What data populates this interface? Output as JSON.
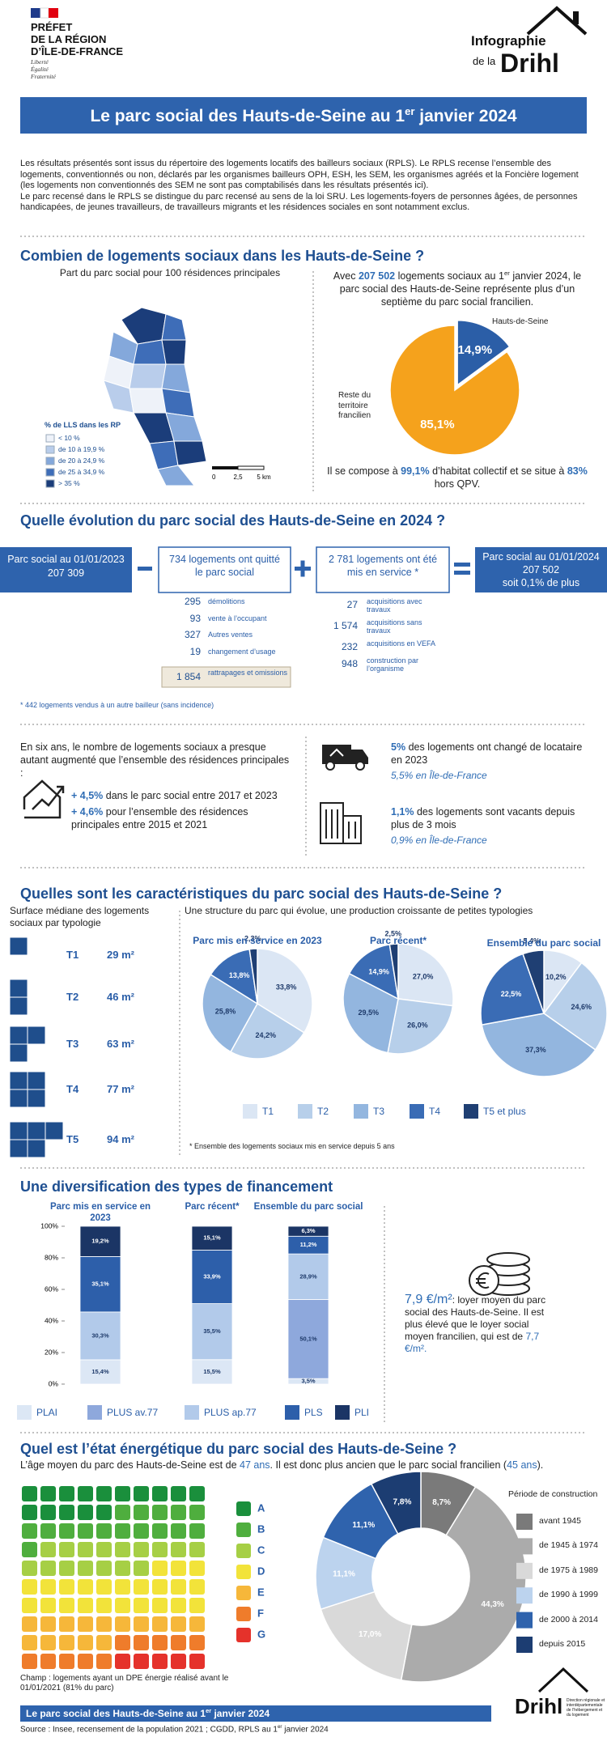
{
  "header": {
    "logo": [
      "PRÉFET",
      "DE LA RÉGION",
      "D’ÎLE-DE-FRANCE"
    ],
    "motto": [
      "Liberté",
      "Égalité",
      "Fraternité"
    ],
    "brand": [
      "Infographie",
      "de la",
      "Drihl"
    ]
  },
  "title": [
    "Le parc social des Hauts-de-Seine au 1",
    "er",
    "janvier 2024"
  ],
  "intro": [
    "Les résultats présentés sont issus du répertoire des logements locatifs des bailleurs sociaux (RPLS). Le RPLS recense l’ensemble des logements, conventionnés ou non, déclarés par les organismes bailleurs OPH, ESH, les SEM, les organismes agréés et la Foncière logement (les logements non conventionnés des SEM ne sont pas comptabilisés dans les résultats présentés ici).",
    "Le parc recensé dans le RPLS se distingue du parc recensé au sens de la loi SRU. Les logements-foyers de personnes âgées, de personnes handicapées, de jeunes travailleurs, de travailleurs migrants et les résidences sociales en sont notamment exclus."
  ],
  "s1": {
    "heading": "Combien de logements sociaux dans les Hauts-de-Seine ?",
    "map": {
      "title": "Part du parc social pour 100 résidences principales",
      "legend_title": "% de LLS dans les RP",
      "legend": [
        {
          "label": "< 10 %",
          "color": "#eef2f9"
        },
        {
          "label": "de 10 à 19,9 %",
          "color": "#b9cdeb"
        },
        {
          "label": "de 20 à 24,9 %",
          "color": "#84a8db"
        },
        {
          "label": "de 25 à 34,9 %",
          "color": "#3e6db8"
        },
        {
          "label": "> 35 %",
          "color": "#1b3d7a"
        }
      ],
      "scale": [
        "0",
        "2,5",
        "5 km"
      ]
    },
    "text": [
      "Avec",
      "207 502",
      "logements sociaux au 1",
      "er",
      "janvier 2024, le parc social des Hauts-de-Seine représente plus d’un septième du parc social francilien."
    ],
    "pie": {
      "type": "pie",
      "categories": [
        "Hauts-de-Seine",
        "Reste du territoire francilien"
      ],
      "values": [
        14.9,
        85.1
      ],
      "value_labels": [
        "14,9%",
        "85,1%"
      ],
      "colors": [
        "#2b5ea7",
        "#f5a21c"
      ]
    },
    "bottom": [
      "Il se compose à",
      "99,1%",
      "d’habitat collectif et se situe à",
      "83%",
      "hors QPV."
    ]
  },
  "s2": {
    "heading": "Quelle évolution du parc social des Hauts-de-Seine en 2024 ?",
    "start": {
      "label": "Parc social au 01/01/2023",
      "value": "207 309"
    },
    "out": {
      "title": "734 logements ont quitté le parc social",
      "items": [
        [
          "295",
          "démolitions"
        ],
        [
          "93",
          "vente à l’occupant"
        ],
        [
          "327",
          "Autres ventes"
        ],
        [
          "19",
          "changement d’usage"
        ]
      ],
      "extra": [
        "1 854",
        "rattrapages et omissions"
      ]
    },
    "in": {
      "title": "2 781 logements ont été mis en service *",
      "items": [
        [
          "27",
          "acquisitions avec travaux"
        ],
        [
          "1 574",
          "acquisitions sans travaux"
        ],
        [
          "232",
          "acquisitions en VEFA"
        ],
        [
          "948",
          "construction par l’organisme"
        ]
      ]
    },
    "end": {
      "label": "Parc social au 01/01/2024",
      "value": "207 502",
      "note": "soit 0,1% de plus"
    },
    "footnote": "* 442 logements vendus à un autre bailleur (sans incidence)"
  },
  "s2b": {
    "left": {
      "text": "En six ans, le nombre de logements sociaux a presque autant augmenté que l’ensemble des résidences principales :",
      "items": [
        [
          "+ 4,5%",
          "dans le parc social entre 2017 et 2023"
        ],
        [
          "+ 4,6%",
          "pour l’ensemble des résidences principales entre 2015 et 2021"
        ]
      ]
    },
    "right": [
      {
        "value": "5%",
        "text": "des logements ont changé de locataire en 2023",
        "idf": "5,5% en Île-de-France"
      },
      {
        "value": "1,1%",
        "text": "des logements sont vacants depuis plus de 3 mois",
        "idf": "0,9% en Île-de-France"
      }
    ]
  },
  "s3": {
    "heading": "Quelles sont les caractéristiques du parc social des Hauts-de-Seine ?",
    "left_title": "Surface médiane des logements sociaux par typologie",
    "surfaces": [
      [
        "T1",
        "29 m²"
      ],
      [
        "T2",
        "46 m²"
      ],
      [
        "T3",
        "63 m²"
      ],
      [
        "T4",
        "77 m²"
      ],
      [
        "T5",
        "94 m²"
      ]
    ],
    "right_title": "Une structure du parc qui évolue, une production croissante de petites typologies",
    "pies": {
      "type": "pie",
      "categories": [
        "T1",
        "T2",
        "T3",
        "T4",
        "T5 et plus"
      ],
      "colors": [
        "#dbe6f4",
        "#b7cfea",
        "#93b6df",
        "#3a6cb5",
        "#1f3f73"
      ],
      "series": [
        {
          "name": "Parc mis en service en 2023",
          "values": [
            33.8,
            24.2,
            25.8,
            13.8,
            2.3
          ],
          "value_labels": [
            "33,8%",
            "24,2%",
            "25,8%",
            "13,8%",
            "2,3%"
          ]
        },
        {
          "name": "Parc récent*",
          "values": [
            27.0,
            26.0,
            29.5,
            14.9,
            2.5
          ],
          "value_labels": [
            "27,0%",
            "26,0%",
            "29,5%",
            "14,9%",
            "2,5%"
          ]
        },
        {
          "name": "Ensemble du parc social",
          "values": [
            10.2,
            24.6,
            37.3,
            22.5,
            5.4
          ],
          "value_labels": [
            "10,2%",
            "24,6%",
            "37,3%",
            "22,5%",
            "5,4%"
          ]
        }
      ]
    },
    "note": "* Ensemble des logements sociaux mis en service depuis 5 ans"
  },
  "s4": {
    "heading": "Une diversification des types de financement",
    "bars": {
      "type": "bar",
      "stacked": true,
      "categories": [
        "Parc mis en service en 2023",
        "Parc récent*",
        "Ensemble du parc social"
      ],
      "series": [
        {
          "name": "PLAI",
          "color": "#dce7f5",
          "values": [
            15.4,
            15.5,
            3.5
          ],
          "value_labels": [
            "15,4%",
            "15,5%",
            "3,5%"
          ]
        },
        {
          "name": "PLUS av.77",
          "color": "#8ea8dc",
          "values": [
            null,
            null,
            50.1
          ],
          "value_labels": [
            null,
            null,
            "50,1%"
          ]
        },
        {
          "name": "PLUS ap.77",
          "color": "#b2caea",
          "values": [
            30.3,
            35.5,
            28.9
          ],
          "value_labels": [
            "30,3%",
            "35,5%",
            "28,9%"
          ]
        },
        {
          "name": "PLS",
          "color": "#2d5faa",
          "values": [
            35.1,
            33.9,
            11.2
          ],
          "value_labels": [
            "35,1%",
            "33,9%",
            "11,2%"
          ]
        },
        {
          "name": "PLI",
          "color": "#1b3565",
          "values": [
            19.2,
            15.1,
            6.3
          ],
          "value_labels": [
            "19,2%",
            "15,1%",
            "6,3%"
          ]
        }
      ],
      "ylim": [
        0,
        100
      ],
      "yticks": [
        {
          "value": 0,
          "label": "0%"
        },
        {
          "value": 20,
          "label": "20%"
        },
        {
          "value": 40,
          "label": "40%"
        },
        {
          "value": 60,
          "label": "60%"
        },
        {
          "value": 80,
          "label": "80%"
        },
        {
          "value": 100,
          "label": "100%"
        }
      ]
    },
    "rent": [
      "7,9 €/m²",
      ": loyer moyen du parc social des Hauts-de-Seine. Il est plus élevé que le loyer social moyen francilien, qui est de",
      "7,7 €/m²."
    ]
  },
  "s5": {
    "heading": "Quel est l’état énergétique du parc social des Hauts-de-Seine ?",
    "subtitle": [
      "L’âge moyen du parc des Hauts-de-Seine est de",
      "47 ans",
      ". Il est donc plus ancien que le parc social francilien (",
      "45 ans",
      ")."
    ],
    "waffle": {
      "type": "waffle",
      "categories": [
        "A",
        "B",
        "C",
        "D",
        "E",
        "F",
        "G"
      ],
      "colors": [
        "#1a8f3c",
        "#4fae3e",
        "#a6cf45",
        "#f2e33a",
        "#f6b73a",
        "#ef7c2b",
        "#e5322b"
      ],
      "values": [
        15,
        16,
        16,
        23,
        15,
        10,
        5
      ]
    },
    "champ": "Champ : logements ayant un DPE énergie réalisé avant le 01/01/2021 (81% du parc)",
    "donut": {
      "type": "donut",
      "title": "Période de construction",
      "categories": [
        "avant 1945",
        "de 1945 à 1974",
        "de 1975 à 1989",
        "de 1990 à 1999",
        "de 2000 à 2014",
        "depuis 2015"
      ],
      "colors": [
        "#7a7a7a",
        "#ababab",
        "#d9d9d9",
        "#bcd3ee",
        "#2f63ad",
        "#1c3d72"
      ],
      "values": [
        8.7,
        44.3,
        17.0,
        11.1,
        11.1,
        7.8
      ],
      "value_labels": [
        "8,7%",
        "44,3%",
        "17,0%",
        "11,1%",
        "11,1%",
        "7,8%"
      ]
    }
  },
  "footer": {
    "bar": [
      "Le parc social des Hauts-de-Seine au 1",
      "er",
      "janvier 2024"
    ],
    "source": [
      "Source : Insee, recensement de la population 2021 ; CGDD, RPLS au 1",
      "er",
      "janvier 2024"
    ],
    "logo": "Drihl",
    "logo_text": "Direction régionale et interdépartementale de l’hébergement et du logement"
  }
}
